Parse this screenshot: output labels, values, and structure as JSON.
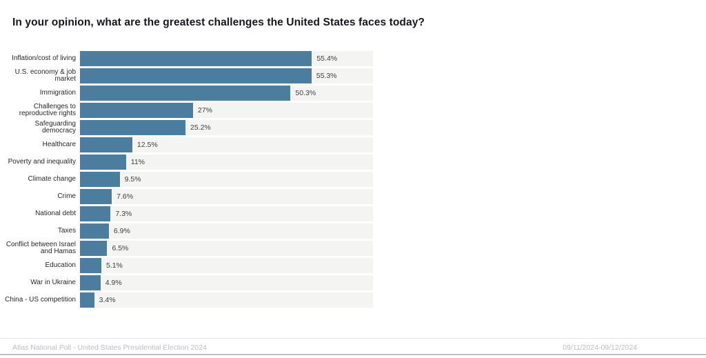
{
  "title": "In your opinion, what are the greatest challenges the United States faces today?",
  "chart_data": {
    "type": "bar",
    "orientation": "horizontal",
    "title": "In your opinion, what are the greatest challenges the United States faces today?",
    "categories": [
      "Inflation/cost of living",
      "U.S. economy & job market",
      "Immigration",
      "Challenges to reproductive rights",
      "Safeguarding democracy",
      "Healthcare",
      "Poverty and inequality",
      "Climate change",
      "Crime",
      "National debt",
      "Taxes",
      "Conflict between Israel and Hamas",
      "Education",
      "War in Ukraine",
      "China - US competition"
    ],
    "values": [
      55.4,
      55.3,
      50.3,
      27,
      25.2,
      12.5,
      11,
      9.5,
      7.6,
      7.3,
      6.9,
      6.5,
      5.1,
      4.9,
      3.4
    ],
    "value_labels": [
      "55.4%",
      "55.3%",
      "50.3%",
      "27%",
      "25.2%",
      "12.5%",
      "11%",
      "9.5%",
      "7.6%",
      "7.3%",
      "6.9%",
      "6.5%",
      "5.1%",
      "4.9%",
      "3.4%"
    ],
    "xlabel": "",
    "ylabel": "",
    "xlim": [
      0,
      70
    ],
    "x_ticks": [
      "0%",
      "10%",
      "20%",
      "30%",
      "40%",
      "50%",
      "60%",
      "70%"
    ],
    "grid": false,
    "legend_position": "none",
    "bar_color": "#4b7e9e",
    "track_color": "#f4f4f2"
  },
  "footer": {
    "source": "Atlas National Poll - United States Presidential Election 2024",
    "dates": "09/11/2024-09/12/2024"
  }
}
